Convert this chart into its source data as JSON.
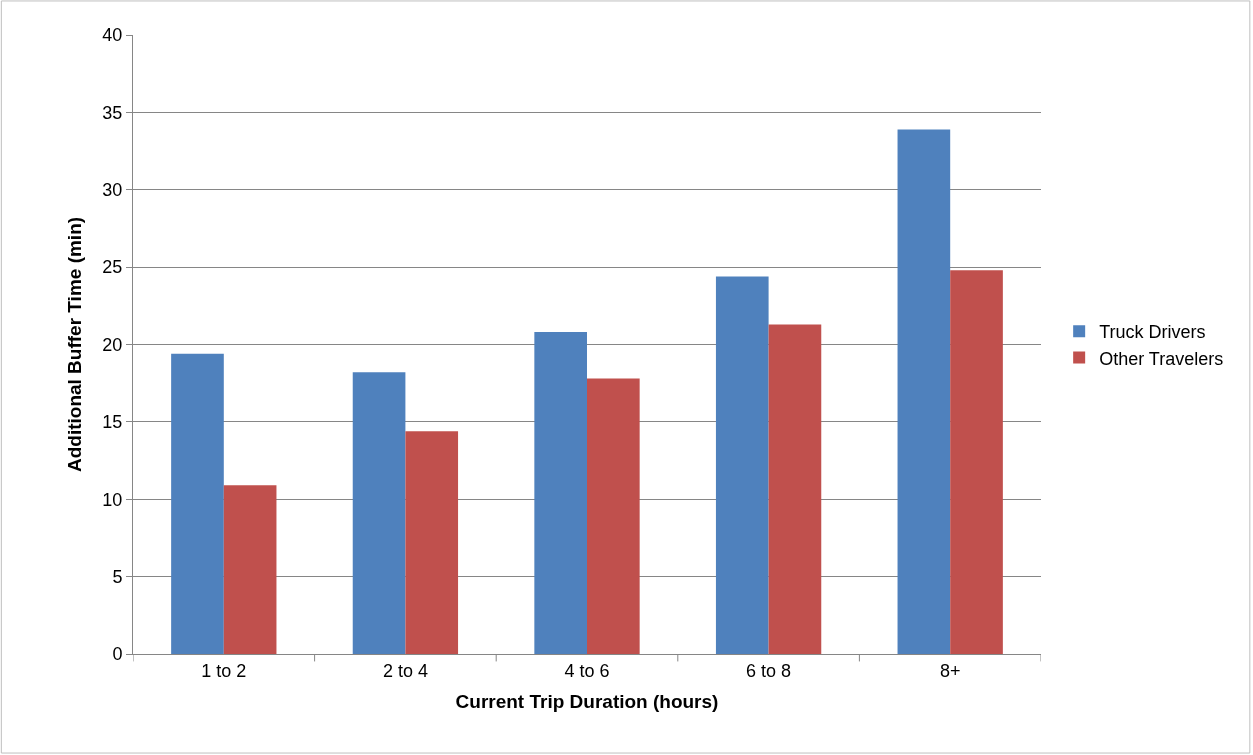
{
  "chart_data": {
    "type": "bar",
    "xlabel": "Current Trip Duration (hours)",
    "ylabel": "Additional Buffer Time (min)",
    "categories": [
      "1 to 2",
      "2 to 4",
      "4 to 6",
      "6 to 8",
      "8+"
    ],
    "series": [
      {
        "name": "Truck Drivers",
        "color": "#4f81bd",
        "values": [
          19.4,
          18.2,
          20.8,
          24.4,
          33.9
        ]
      },
      {
        "name": "Other Travelers",
        "color": "#c0504d",
        "values": [
          10.9,
          14.4,
          17.8,
          21.3,
          24.8
        ]
      }
    ],
    "ylim": [
      0,
      40
    ],
    "yticks": [
      0,
      5,
      10,
      15,
      20,
      25,
      30,
      35,
      40
    ],
    "grid": "y",
    "legend": "right"
  }
}
